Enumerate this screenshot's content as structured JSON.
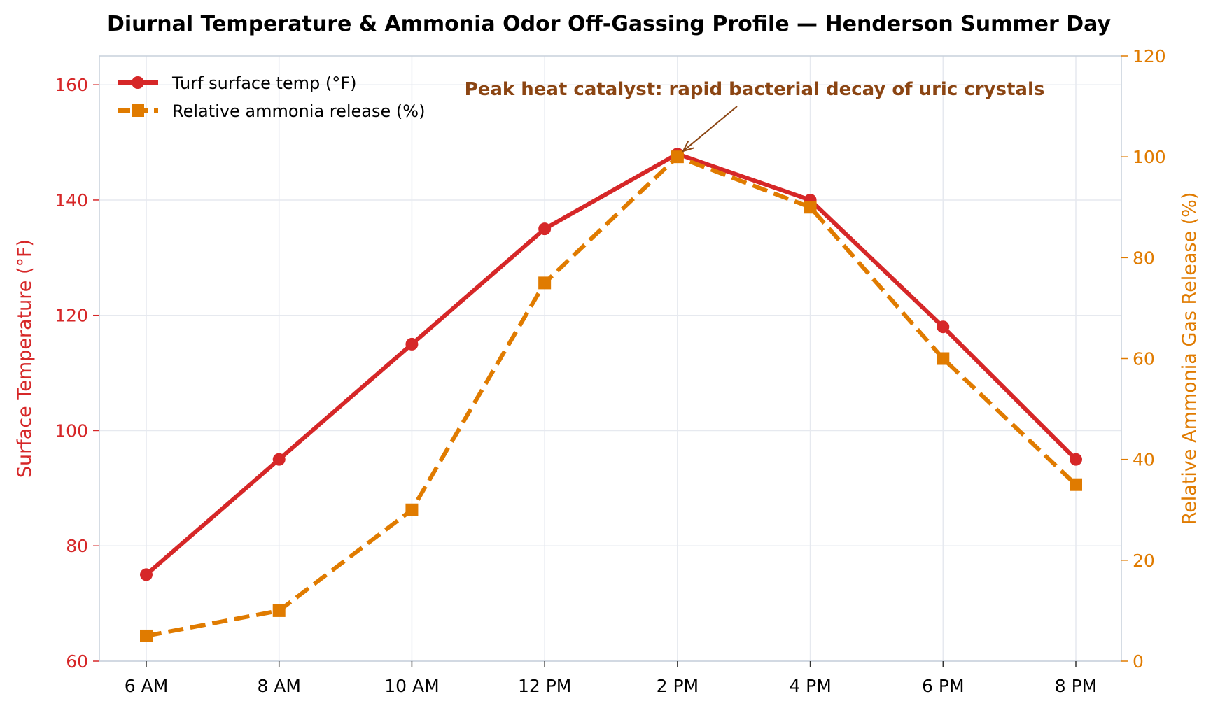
{
  "chart_data": {
    "type": "line",
    "title": "Diurnal Temperature & Ammonia Odor Off-Gassing Profile — Henderson Summer Day",
    "categories": [
      "6 AM",
      "8 AM",
      "10 AM",
      "12 PM",
      "2 PM",
      "4 PM",
      "6 PM",
      "8 PM"
    ],
    "ylabel_left": "Surface Temperature (°F)",
    "ylabel_right": "Relative Ammonia Gas Release (%)",
    "ylim_left": [
      60,
      165
    ],
    "ylim_right": [
      0,
      120
    ],
    "yticks_left": [
      60,
      80,
      100,
      120,
      140,
      160
    ],
    "yticks_right": [
      0,
      20,
      40,
      60,
      80,
      100,
      120
    ],
    "grid": true,
    "legend_position": "top-left",
    "series": [
      {
        "name": "Turf surface temp (°F)",
        "axis": "left",
        "color": "#d62728",
        "style": "solid",
        "marker": "circle",
        "values": [
          75,
          95,
          115,
          135,
          148,
          140,
          118,
          95
        ]
      },
      {
        "name": "Relative ammonia release (%)",
        "axis": "right",
        "color": "#e07b00",
        "style": "dashed",
        "marker": "square",
        "values": [
          5,
          10,
          30,
          75,
          100,
          90,
          60,
          35
        ]
      }
    ],
    "annotation": {
      "text": "Peak heat catalyst: rapid bacterial decay of uric crystals",
      "category": "2 PM",
      "value": 148,
      "color": "#8b4513"
    }
  }
}
